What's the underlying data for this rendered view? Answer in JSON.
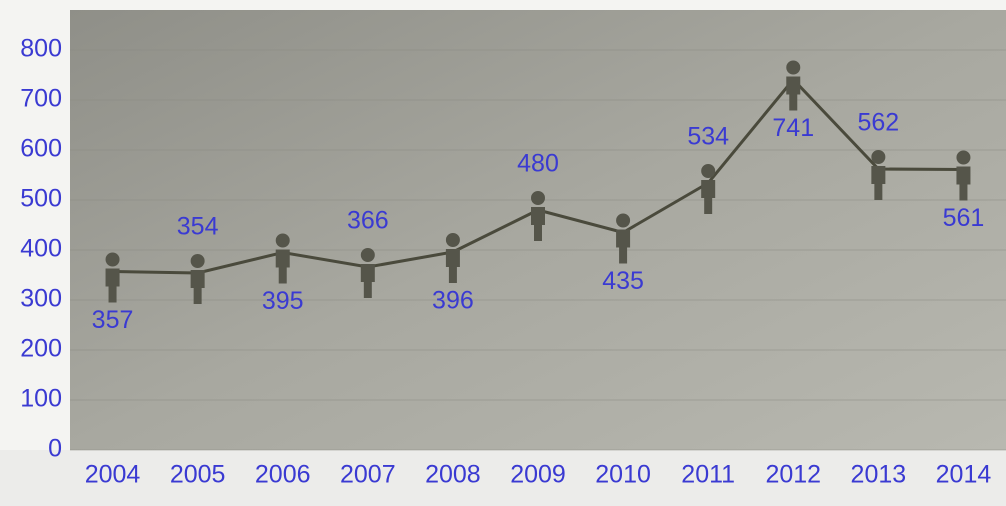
{
  "chart_data": {
    "type": "line",
    "categories": [
      "2004",
      "2005",
      "2006",
      "2007",
      "2008",
      "2009",
      "2010",
      "2011",
      "2012",
      "2013",
      "2014"
    ],
    "values": [
      357,
      354,
      395,
      366,
      396,
      480,
      435,
      534,
      741,
      562,
      561
    ],
    "color": "#4a4a3c",
    "marker_color": "#55554a",
    "label_color": "#3a3ad2",
    "ylim": [
      0,
      850
    ],
    "yticks": [
      0,
      100,
      200,
      300,
      400,
      500,
      600,
      700,
      800
    ],
    "grid": true
  }
}
